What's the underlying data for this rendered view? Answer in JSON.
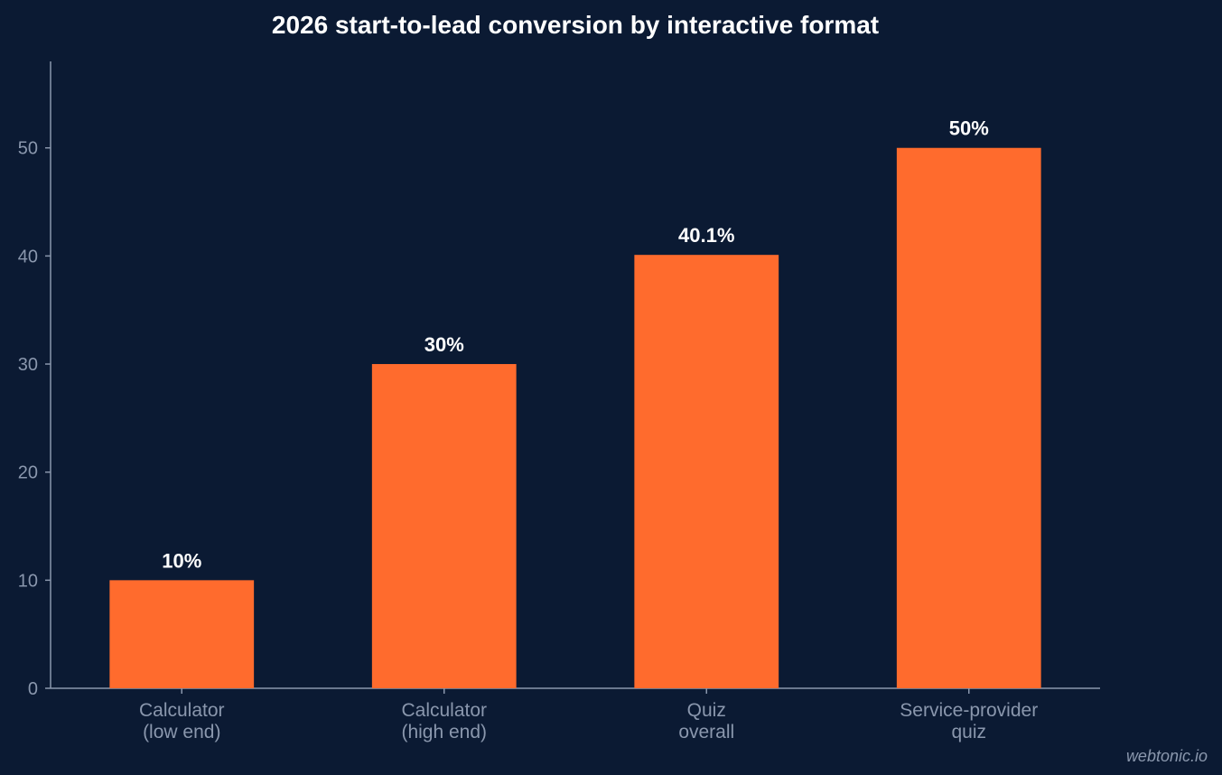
{
  "chart_data": {
    "type": "bar",
    "title": "2026 start-to-lead conversion by interactive format",
    "xlabel": "",
    "ylabel": "",
    "categories": [
      [
        "Calculator",
        "(low end)"
      ],
      [
        "Calculator",
        "(high end)"
      ],
      [
        "Quiz",
        "overall"
      ],
      [
        "Service-provider",
        "quiz"
      ]
    ],
    "values": [
      10,
      30,
      40.1,
      50
    ],
    "data_labels": [
      "10%",
      "30%",
      "40.1%",
      "50%"
    ],
    "ylim": [
      0,
      58
    ],
    "yticks": [
      0,
      10,
      20,
      30,
      40,
      50
    ],
    "grid": false,
    "legend": "none",
    "colors": {
      "background": "#0b1a33",
      "bar": "#ff6b2d",
      "axis": "#8a97ad",
      "tick_text": "#8a97ad",
      "title_text": "#ffffff",
      "data_label_text": "#ffffff"
    }
  },
  "watermark": "webtonic.io"
}
